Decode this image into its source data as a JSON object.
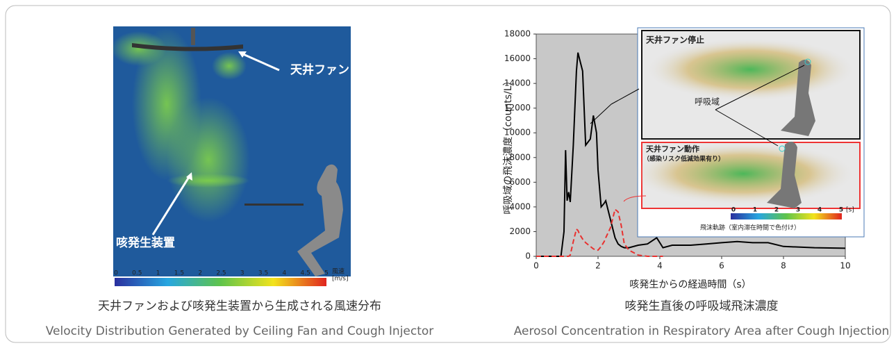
{
  "left_panel": {
    "labels": [
      "天井ファン",
      "咳発生装置"
    ],
    "colorbar": {
      "ticks": [
        0,
        0.5,
        1,
        1.5,
        2,
        2.5,
        3,
        3.5,
        4,
        4.5,
        5
      ],
      "title": "風速",
      "unit": "[m/s]"
    }
  },
  "captions": {
    "left": {
      "ja": "天井ファンおよび咳発生装置から生成される風速分布",
      "en": "Velocity Distribution Generated by Ceiling Fan and Cough Injector"
    },
    "right": {
      "ja": "咳発生直後の呼吸域飛沫濃度",
      "en": "Aerosol Concentration in Respiratory Area after Cough Injection"
    }
  },
  "insets": {
    "top_label": "天井ファン停止",
    "zone_label": "呼吸域",
    "bottom_label": "天井ファン動作",
    "bottom_note": "（感染リスク低減効果有り）",
    "colorbar": {
      "ticks": [
        0,
        1,
        2,
        3,
        4,
        5
      ],
      "unit": "[s]",
      "title": "飛沫軌跡（室内滞在時間で色付け）"
    }
  },
  "chart_data": {
    "type": "line",
    "x_label": "咳発生からの経過時間（s）",
    "y_label": "呼吸域の飛沫濃度（counts/L）",
    "x": [
      0,
      0.8,
      0.9,
      0.95,
      1.0,
      1.05,
      1.1,
      1.2,
      1.3,
      1.35,
      1.4,
      1.5,
      1.6,
      1.75,
      1.85,
      1.95,
      2.0,
      2.1,
      2.2,
      2.25,
      2.4,
      2.55,
      2.65,
      2.75,
      2.85,
      3.0,
      3.3,
      3.6,
      3.9,
      4.1,
      4.4,
      5,
      5.5,
      6,
      6.5,
      7,
      7.5,
      8,
      9,
      10
    ],
    "series": [
      {
        "color": "#000000",
        "dash": false,
        "values": [
          0,
          0,
          2000,
          8600,
          4500,
          5200,
          4400,
          9000,
          15000,
          16500,
          16000,
          15000,
          9000,
          9500,
          11400,
          10000,
          7000,
          4000,
          4300,
          4500,
          3000,
          1500,
          1000,
          800,
          700,
          700,
          900,
          1000,
          1500,
          700,
          900,
          900,
          1000,
          1100,
          1200,
          1100,
          1100,
          800,
          700,
          650
        ]
      },
      {
        "color": "#e8312f",
        "dash": true,
        "values": [
          0,
          0,
          0,
          0,
          0,
          0,
          100,
          1200,
          2200,
          2100,
          1800,
          1400,
          1100,
          800,
          600,
          500,
          500,
          800,
          1200,
          1500,
          2300,
          3800,
          3600,
          2500,
          1000,
          500,
          100,
          0,
          0,
          0,
          null,
          null,
          null,
          null,
          null,
          null,
          null,
          null,
          null,
          null
        ]
      }
    ],
    "xlim": [
      0,
      10
    ],
    "xticks": [
      0,
      2,
      4,
      6,
      8,
      10
    ],
    "ylim": [
      0,
      18000
    ],
    "yticks": [
      0,
      2000,
      4000,
      6000,
      8000,
      10000,
      12000,
      14000,
      16000,
      18000
    ],
    "background": "#c8c8c8"
  }
}
